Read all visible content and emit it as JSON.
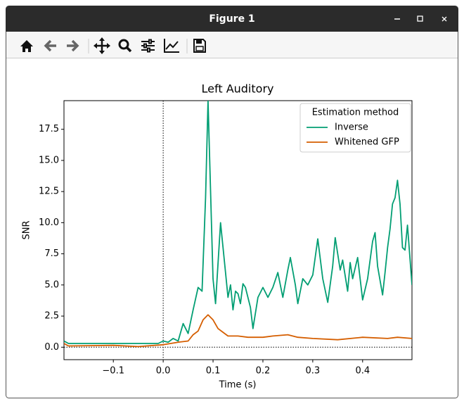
{
  "window": {
    "title": "Figure 1"
  },
  "chart_data": {
    "type": "line",
    "title": "Left Auditory",
    "xlabel": "Time (s)",
    "ylabel": "SNR",
    "xlim": [
      -0.199,
      0.499
    ],
    "ylim": [
      -1.0,
      19.8
    ],
    "xticks": [
      {
        "value": -0.1,
        "label": "−0.1"
      },
      {
        "value": 0,
        "label": "0.0"
      },
      0.1,
      0.2,
      0.3,
      0.4
    ],
    "yticks": [
      {
        "value": 0,
        "label": "0.0"
      },
      2.5,
      {
        "value": 5,
        "label": "5.0"
      },
      7.5,
      {
        "value": 10,
        "label": "10.0"
      },
      12.5,
      {
        "value": 15,
        "label": "15.0"
      },
      17.5
    ],
    "axvline": 0,
    "axhline": 0,
    "legend_title": "Estimation method",
    "legend": "upper right",
    "series": [
      {
        "name": "Inverse",
        "color": "#029e73",
        "x": [
          -0.199,
          -0.19,
          -0.1,
          -0.01,
          0.0,
          0.01,
          0.02,
          0.03,
          0.04,
          0.05,
          0.06,
          0.07,
          0.078,
          0.085,
          0.09,
          0.1,
          0.105,
          0.115,
          0.125,
          0.13,
          0.135,
          0.14,
          0.145,
          0.15,
          0.155,
          0.16,
          0.165,
          0.175,
          0.18,
          0.19,
          0.2,
          0.21,
          0.22,
          0.23,
          0.24,
          0.25,
          0.255,
          0.265,
          0.27,
          0.28,
          0.29,
          0.3,
          0.31,
          0.32,
          0.33,
          0.34,
          0.345,
          0.355,
          0.36,
          0.37,
          0.375,
          0.38,
          0.39,
          0.4,
          0.41,
          0.42,
          0.425,
          0.43,
          0.44,
          0.445,
          0.45,
          0.455,
          0.46,
          0.465,
          0.47,
          0.475,
          0.48,
          0.485,
          0.49,
          0.499
        ],
        "values": [
          0.5,
          0.3,
          0.3,
          0.3,
          0.5,
          0.4,
          0.7,
          0.5,
          1.9,
          1.1,
          3.0,
          4.8,
          4.5,
          12.0,
          19.8,
          5.5,
          3.5,
          10.0,
          6.0,
          4.0,
          5.0,
          3.0,
          4.5,
          4.3,
          3.5,
          5.1,
          4.8,
          3.2,
          1.5,
          4.0,
          4.8,
          4.0,
          4.8,
          6.0,
          4.0,
          6.2,
          7.2,
          5.0,
          3.5,
          5.5,
          5.0,
          5.8,
          8.7,
          5.5,
          3.6,
          6.5,
          8.8,
          6.2,
          7.0,
          4.5,
          6.8,
          5.5,
          7.2,
          3.8,
          5.5,
          8.5,
          9.2,
          6.5,
          4.2,
          6.0,
          8.0,
          9.5,
          11.5,
          12.0,
          13.4,
          11.5,
          8.0,
          7.8,
          9.8,
          5.0
        ]
      },
      {
        "name": "Whitened GFP",
        "color": "#d55e00",
        "x": [
          -0.199,
          -0.19,
          -0.1,
          -0.05,
          0.0,
          0.03,
          0.05,
          0.06,
          0.07,
          0.08,
          0.09,
          0.1,
          0.11,
          0.12,
          0.13,
          0.15,
          0.17,
          0.2,
          0.22,
          0.25,
          0.27,
          0.3,
          0.35,
          0.4,
          0.45,
          0.47,
          0.499
        ],
        "values": [
          0.3,
          0.1,
          0.15,
          0.05,
          0.2,
          0.4,
          0.5,
          1.0,
          1.3,
          2.2,
          2.6,
          2.2,
          1.5,
          1.2,
          0.9,
          0.9,
          0.8,
          0.8,
          0.9,
          1.0,
          0.8,
          0.7,
          0.6,
          0.8,
          0.7,
          0.8,
          0.7
        ]
      }
    ]
  }
}
